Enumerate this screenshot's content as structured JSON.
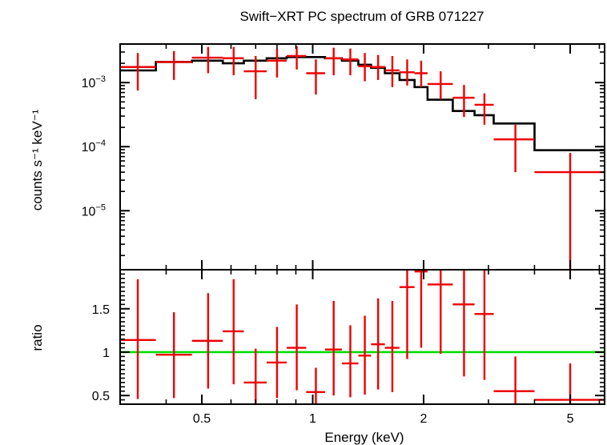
{
  "chart_data": {
    "type": "scatter",
    "title": "Swift−XRT PC spectrum of GRB 071227",
    "xlabel": "Energy (keV)",
    "x_scale": "log",
    "xlim": [
      0.3,
      6.2
    ],
    "x_ticks": [
      {
        "value": 0.5,
        "label": "0.5"
      },
      {
        "value": 1,
        "label": "1"
      },
      {
        "value": 2,
        "label": "2"
      },
      {
        "value": 5,
        "label": "5"
      }
    ],
    "colors": {
      "data": "#ee0000",
      "model": "#000000",
      "unity": "#00dd00",
      "axes": "#000000"
    },
    "top_panel": {
      "ylabel": "counts s⁻¹ keV⁻¹",
      "y_scale": "log",
      "ylim": [
        1.2e-06,
        0.004
      ],
      "y_ticks": [
        {
          "value": 0.001,
          "base": "10",
          "exp": "−3"
        },
        {
          "value": 0.0001,
          "base": "10",
          "exp": "−4"
        },
        {
          "value": 1e-05,
          "base": "10",
          "exp": "−5"
        }
      ],
      "data": [
        {
          "x": 0.335,
          "xlo": 0.3,
          "xhi": 0.375,
          "y": 0.00175,
          "ylo": 0.00075,
          "yhi": 0.0029
        },
        {
          "x": 0.42,
          "xlo": 0.375,
          "xhi": 0.47,
          "y": 0.0021,
          "ylo": 0.0011,
          "yhi": 0.0031
        },
        {
          "x": 0.52,
          "xlo": 0.47,
          "xhi": 0.57,
          "y": 0.00245,
          "ylo": 0.0014,
          "yhi": 0.0036
        },
        {
          "x": 0.61,
          "xlo": 0.57,
          "xhi": 0.65,
          "y": 0.0024,
          "ylo": 0.0013,
          "yhi": 0.0036
        },
        {
          "x": 0.7,
          "xlo": 0.65,
          "xhi": 0.75,
          "y": 0.0015,
          "ylo": 0.00055,
          "yhi": 0.0026
        },
        {
          "x": 0.8,
          "xlo": 0.75,
          "xhi": 0.85,
          "y": 0.0022,
          "ylo": 0.0012,
          "yhi": 0.0034
        },
        {
          "x": 0.905,
          "xlo": 0.85,
          "xhi": 0.96,
          "y": 0.0026,
          "ylo": 0.0016,
          "yhi": 0.0037
        },
        {
          "x": 1.02,
          "xlo": 0.96,
          "xhi": 1.08,
          "y": 0.0014,
          "ylo": 0.00065,
          "yhi": 0.0023
        },
        {
          "x": 1.14,
          "xlo": 1.08,
          "xhi": 1.2,
          "y": 0.0024,
          "ylo": 0.0013,
          "yhi": 0.0035
        },
        {
          "x": 1.265,
          "xlo": 1.2,
          "xhi": 1.33,
          "y": 0.0023,
          "ylo": 0.0013,
          "yhi": 0.0034
        },
        {
          "x": 1.385,
          "xlo": 1.33,
          "xhi": 1.44,
          "y": 0.0018,
          "ylo": 0.00105,
          "yhi": 0.0029
        },
        {
          "x": 1.505,
          "xlo": 1.44,
          "xhi": 1.57,
          "y": 0.00175,
          "ylo": 0.0011,
          "yhi": 0.0027
        },
        {
          "x": 1.645,
          "xlo": 1.57,
          "xhi": 1.72,
          "y": 0.00155,
          "ylo": 0.00085,
          "yhi": 0.0026
        },
        {
          "x": 1.805,
          "xlo": 1.72,
          "xhi": 1.89,
          "y": 0.00145,
          "ylo": 0.0009,
          "yhi": 0.0023
        },
        {
          "x": 1.97,
          "xlo": 1.89,
          "xhi": 2.05,
          "y": 0.0014,
          "ylo": 0.00085,
          "yhi": 0.0022
        },
        {
          "x": 2.225,
          "xlo": 2.05,
          "xhi": 2.4,
          "y": 0.00095,
          "ylo": 0.00055,
          "yhi": 0.0015
        },
        {
          "x": 2.575,
          "xlo": 2.4,
          "xhi": 2.75,
          "y": 0.00058,
          "ylo": 0.00029,
          "yhi": 0.00092
        },
        {
          "x": 2.925,
          "xlo": 2.75,
          "xhi": 3.1,
          "y": 0.00045,
          "ylo": 0.00022,
          "yhi": 0.00068
        },
        {
          "x": 3.55,
          "xlo": 3.1,
          "xhi": 4.0,
          "y": 0.00013,
          "ylo": 4e-05,
          "yhi": 0.00022
        },
        {
          "x": 5.0,
          "xlo": 4.0,
          "xhi": 6.2,
          "y": 4e-05,
          "ylo": 1.2e-06,
          "yhi": 8e-05
        }
      ],
      "model_steps": [
        {
          "xlo": 0.3,
          "xhi": 0.375,
          "y": 0.00155
        },
        {
          "xlo": 0.375,
          "xhi": 0.47,
          "y": 0.0021
        },
        {
          "xlo": 0.47,
          "xhi": 0.57,
          "y": 0.0022
        },
        {
          "xlo": 0.57,
          "xhi": 0.65,
          "y": 0.002
        },
        {
          "xlo": 0.65,
          "xhi": 0.75,
          "y": 0.0022
        },
        {
          "xlo": 0.75,
          "xhi": 0.85,
          "y": 0.0024
        },
        {
          "xlo": 0.85,
          "xhi": 0.96,
          "y": 0.0025
        },
        {
          "xlo": 0.96,
          "xhi": 1.08,
          "y": 0.0025
        },
        {
          "xlo": 1.08,
          "xhi": 1.2,
          "y": 0.0024
        },
        {
          "xlo": 1.2,
          "xhi": 1.33,
          "y": 0.0022
        },
        {
          "xlo": 1.33,
          "xhi": 1.44,
          "y": 0.0019
        },
        {
          "xlo": 1.44,
          "xhi": 1.57,
          "y": 0.0017
        },
        {
          "xlo": 1.57,
          "xhi": 1.72,
          "y": 0.0014
        },
        {
          "xlo": 1.72,
          "xhi": 1.89,
          "y": 0.0011
        },
        {
          "xlo": 1.89,
          "xhi": 2.05,
          "y": 0.00085
        },
        {
          "xlo": 2.05,
          "xhi": 2.4,
          "y": 0.00054
        },
        {
          "xlo": 2.4,
          "xhi": 2.75,
          "y": 0.00036
        },
        {
          "xlo": 2.75,
          "xhi": 3.1,
          "y": 0.00031
        },
        {
          "xlo": 3.1,
          "xhi": 4.0,
          "y": 0.00023
        },
        {
          "xlo": 4.0,
          "xhi": 6.2,
          "y": 8.8e-05
        }
      ]
    },
    "bottom_panel": {
      "ylabel": "ratio",
      "y_scale": "linear",
      "ylim": [
        0.4,
        1.95
      ],
      "y_ticks": [
        {
          "value": 0.5,
          "label": "0.5"
        },
        {
          "value": 1,
          "label": "1"
        },
        {
          "value": 1.5,
          "label": "1.5"
        }
      ],
      "unity_line": 1,
      "data": [
        {
          "x": 0.335,
          "xlo": 0.3,
          "xhi": 0.375,
          "y": 1.14,
          "ylo": 0.46,
          "yhi": 1.84
        },
        {
          "x": 0.42,
          "xlo": 0.375,
          "xhi": 0.47,
          "y": 0.97,
          "ylo": 0.47,
          "yhi": 1.46
        },
        {
          "x": 0.52,
          "xlo": 0.47,
          "xhi": 0.57,
          "y": 1.13,
          "ylo": 0.58,
          "yhi": 1.68
        },
        {
          "x": 0.61,
          "xlo": 0.57,
          "xhi": 0.65,
          "y": 1.24,
          "ylo": 0.63,
          "yhi": 1.84
        },
        {
          "x": 0.7,
          "xlo": 0.65,
          "xhi": 0.75,
          "y": 0.65,
          "ylo": 0.4,
          "yhi": 1.04
        },
        {
          "x": 0.8,
          "xlo": 0.75,
          "xhi": 0.85,
          "y": 0.88,
          "ylo": 0.47,
          "yhi": 1.29
        },
        {
          "x": 0.905,
          "xlo": 0.85,
          "xhi": 0.96,
          "y": 1.05,
          "ylo": 0.56,
          "yhi": 1.55
        },
        {
          "x": 1.02,
          "xlo": 0.96,
          "xhi": 1.08,
          "y": 0.54,
          "ylo": 0.4,
          "yhi": 0.82
        },
        {
          "x": 1.14,
          "xlo": 1.08,
          "xhi": 1.2,
          "y": 1.03,
          "ylo": 0.5,
          "yhi": 1.59
        },
        {
          "x": 1.265,
          "xlo": 1.2,
          "xhi": 1.33,
          "y": 0.87,
          "ylo": 0.48,
          "yhi": 1.31
        },
        {
          "x": 1.385,
          "xlo": 1.33,
          "xhi": 1.44,
          "y": 0.96,
          "ylo": 0.51,
          "yhi": 1.42
        },
        {
          "x": 1.505,
          "xlo": 1.44,
          "xhi": 1.57,
          "y": 1.09,
          "ylo": 0.57,
          "yhi": 1.62
        },
        {
          "x": 1.645,
          "xlo": 1.57,
          "xhi": 1.72,
          "y": 1.05,
          "ylo": 0.54,
          "yhi": 1.59
        },
        {
          "x": 1.805,
          "xlo": 1.72,
          "xhi": 1.89,
          "y": 1.75,
          "ylo": 0.92,
          "yhi": 1.95
        },
        {
          "x": 1.97,
          "xlo": 1.89,
          "xhi": 2.05,
          "y": 1.93,
          "ylo": 1.05,
          "yhi": 1.95
        },
        {
          "x": 2.225,
          "xlo": 2.05,
          "xhi": 2.4,
          "y": 1.78,
          "ylo": 0.98,
          "yhi": 1.95
        },
        {
          "x": 2.575,
          "xlo": 2.4,
          "xhi": 2.75,
          "y": 1.55,
          "ylo": 0.72,
          "yhi": 1.95
        },
        {
          "x": 2.925,
          "xlo": 2.75,
          "xhi": 3.1,
          "y": 1.44,
          "ylo": 0.68,
          "yhi": 1.95
        },
        {
          "x": 3.55,
          "xlo": 3.1,
          "xhi": 4.0,
          "y": 0.55,
          "ylo": 0.4,
          "yhi": 0.95
        },
        {
          "x": 5.0,
          "xlo": 4.0,
          "xhi": 6.2,
          "y": 0.45,
          "ylo": 0.4,
          "yhi": 0.87
        }
      ]
    }
  }
}
